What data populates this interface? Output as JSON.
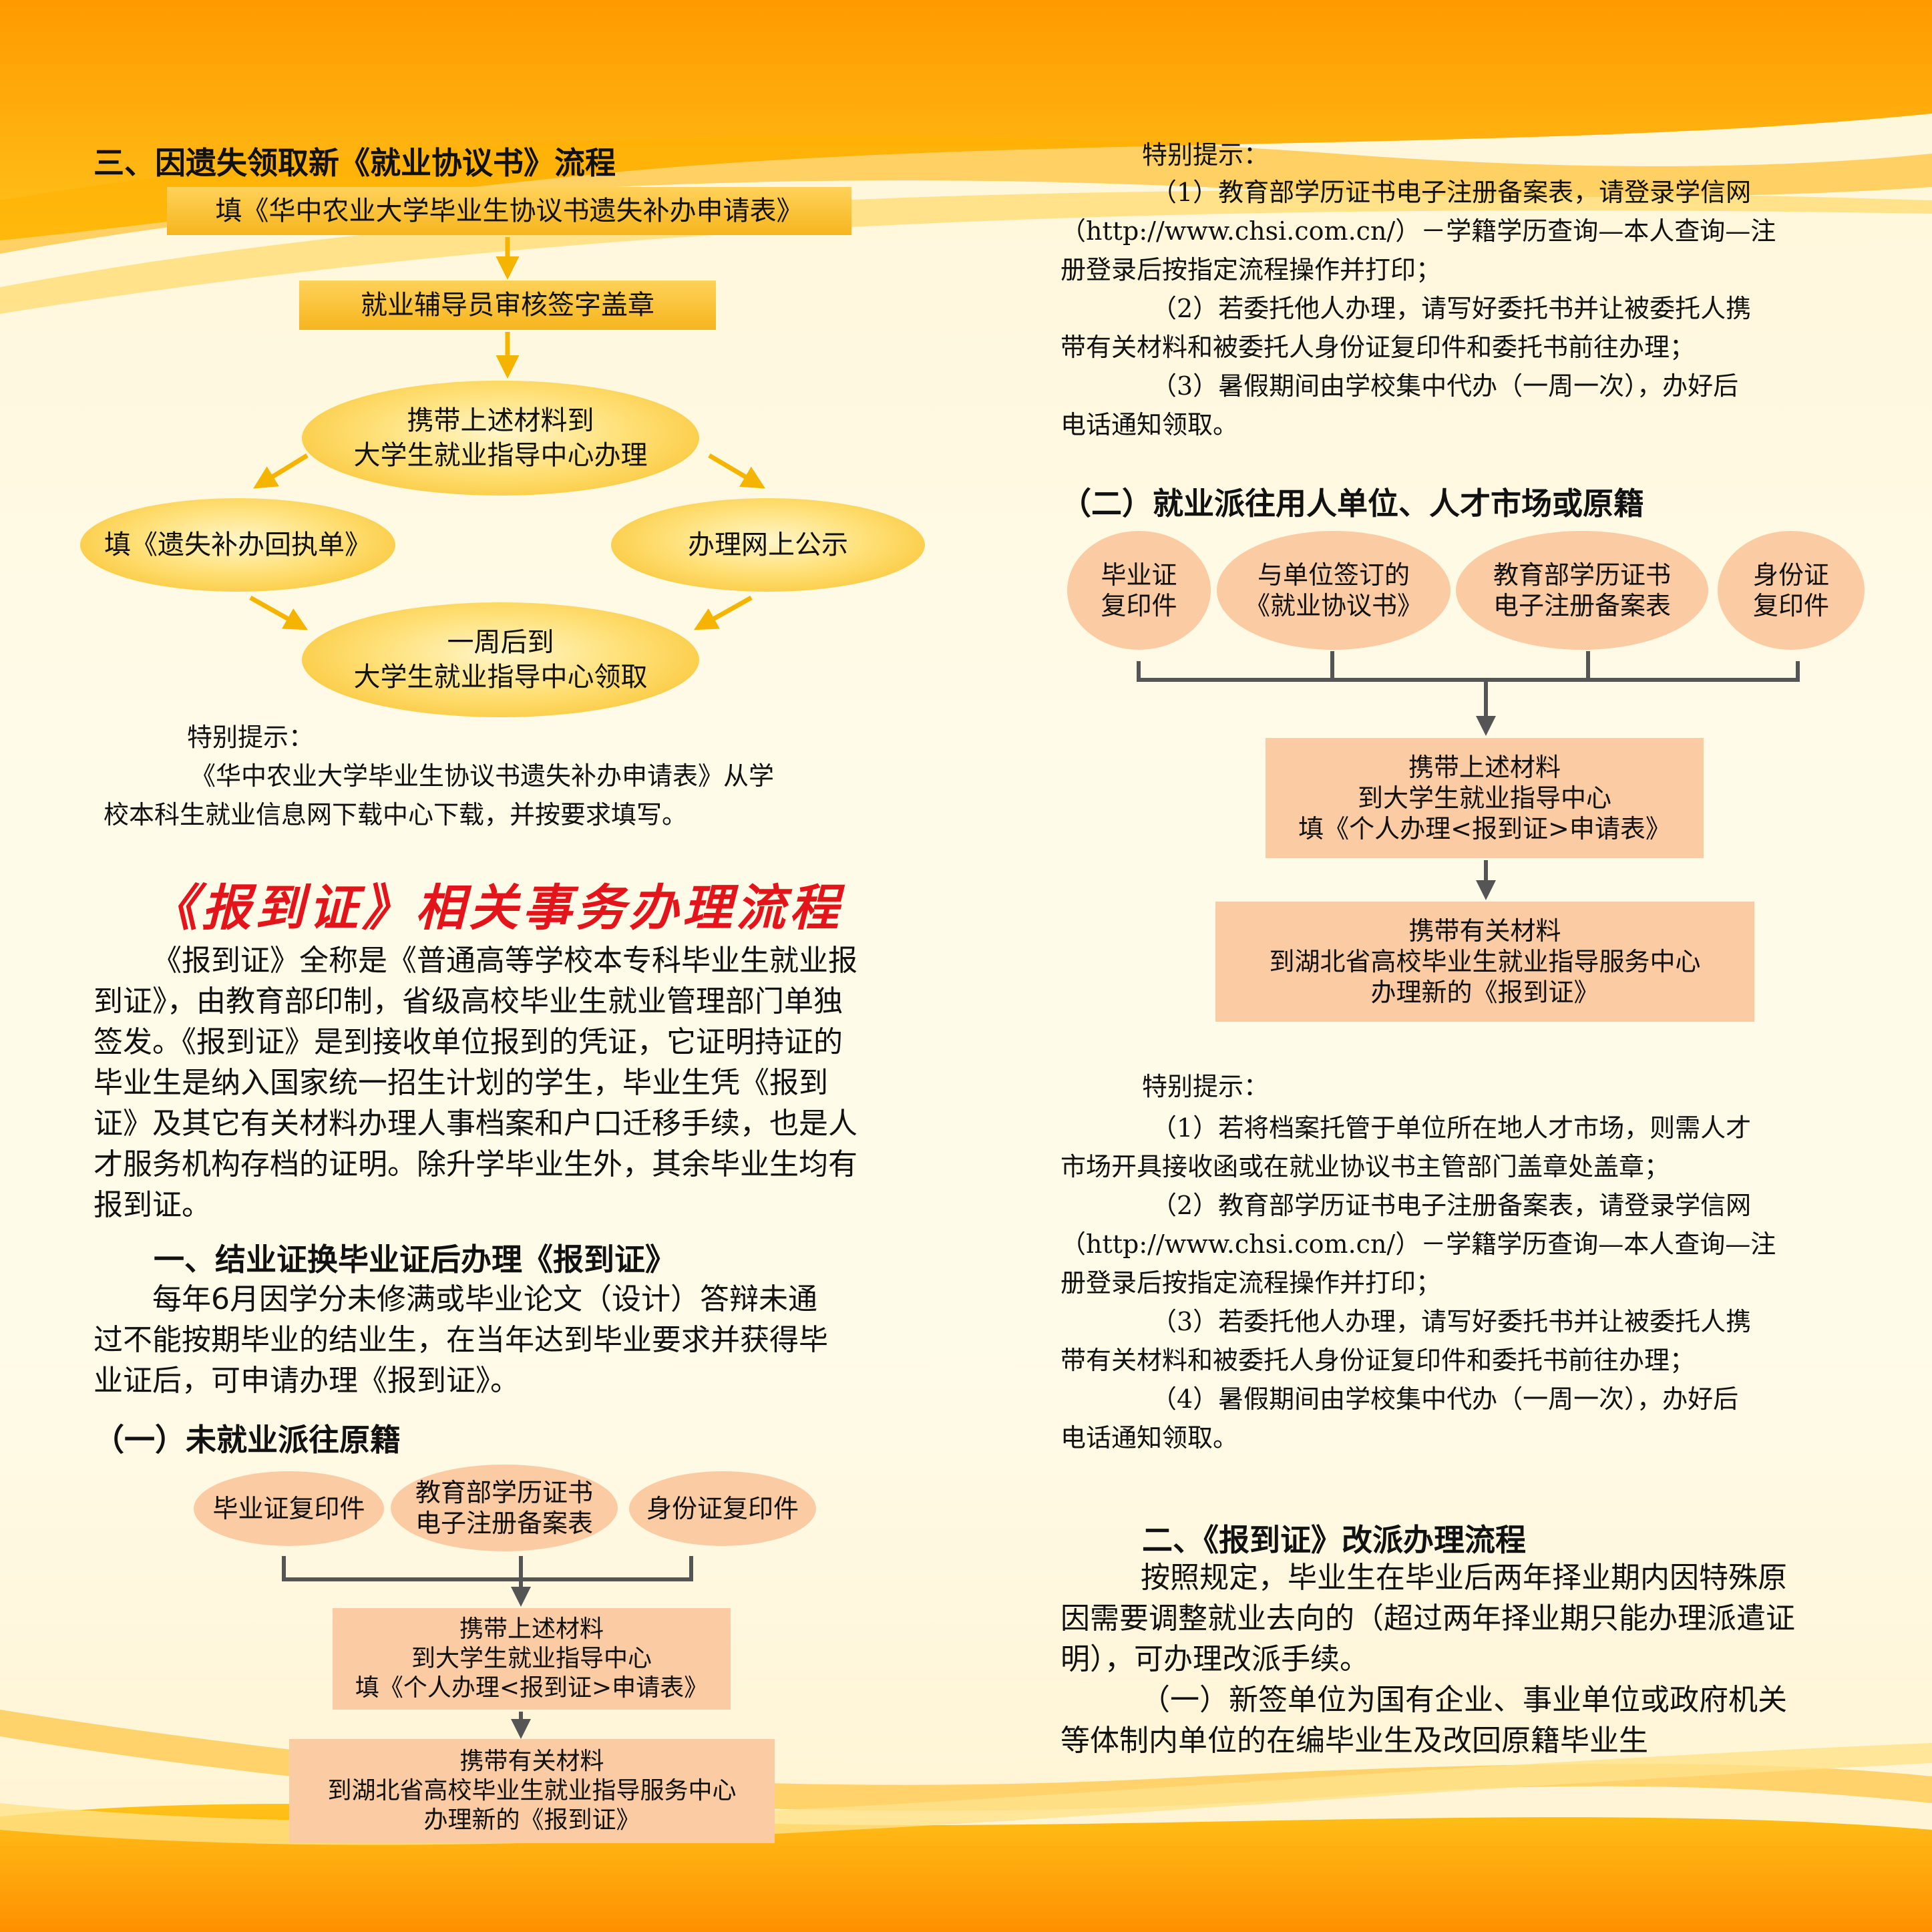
{
  "left": {
    "section3_title": "三、因遗失领取新《就业协议书》流程",
    "flow": {
      "step1": "填《华中农业大学毕业生协议书遗失补办申请表》",
      "step2": "就业辅导员审核签字盖章",
      "step3": [
        "携带上述材料到",
        "大学生就业指导中心办理"
      ],
      "left_branch": "填《遗失补办回执单》",
      "right_branch": "办理网上公示",
      "final": [
        "一周后到",
        "大学生就业指导中心领取"
      ]
    },
    "tip_title": "特别提示：",
    "tip_lines": [
      "《华中农业大学毕业生协议书遗失补办申请表》从学",
      "校本科生就业信息网下载中心下载，并按要求填写。"
    ],
    "main_title": "《报到证》相关事务办理流程",
    "intro_lines": [
      "《报到证》全称是《普通高等学校本专科毕业生就业报",
      "到证》，由教育部印制，省级高校毕业生就业管理部门单独",
      "签发。《报到证》是到接收单位报到的凭证，它证明持证的",
      "毕业生是纳入国家统一招生计划的学生，毕业生凭《报到",
      "证》及其它有关材料办理人事档案和户口迁移手续，也是人",
      "才服务机构存档的证明。除升学毕业生外，其余毕业生均有",
      "报到证。"
    ],
    "sub1_title": "一、结业证换毕业证后办理《报到证》",
    "sub1_lines": [
      "每年6月因学分未修满或毕业论文（设计）答辩未通",
      "过不能按期毕业的结业生，在当年达到毕业要求并获得毕",
      "业证后，可申请办理《报到证》。"
    ],
    "sub1a_title": "（一）未就业派往原籍",
    "docs": [
      "毕业证复印件",
      [
        "教育部学历证书",
        "电子注册备案表"
      ],
      "身份证复印件"
    ],
    "box1": [
      "携带上述材料",
      "到大学生就业指导中心",
      "填《个人办理<报到证>申请表》"
    ],
    "box2": [
      "携带有关材料",
      "到湖北省高校毕业生就业指导服务中心",
      "办理新的《报到证》"
    ]
  },
  "right": {
    "tip1_title": "特别提示：",
    "tip1_lines": [
      "（1）教育部学历证书电子注册备案表，请登录学信网",
      "（http://www.chsi.com.cn/）－学籍学历查询—本人查询—注",
      "册登录后按指定流程操作并打印；",
      "（2）若委托他人办理，请写好委托书并让被委托人携",
      "带有关材料和被委托人身份证复印件和委托书前往办理；",
      "（3）暑假期间由学校集中代办（一周一次），办好后",
      "电话通知领取。"
    ],
    "sub2_title": "（二）就业派往用人单位、人才市场或原籍",
    "docs": [
      [
        "毕业证",
        "复印件"
      ],
      [
        "与单位签订的",
        "《就业协议书》"
      ],
      [
        "教育部学历证书",
        "电子注册备案表"
      ],
      [
        "身份证",
        "复印件"
      ]
    ],
    "box1": [
      "携带上述材料",
      "到大学生就业指导中心",
      "填《个人办理<报到证>申请表》"
    ],
    "box2": [
      "携带有关材料",
      "到湖北省高校毕业生就业指导服务中心",
      "办理新的《报到证》"
    ],
    "tip2_title": "特别提示：",
    "tip2_lines": [
      "（1）若将档案托管于单位所在地人才市场，则需人才",
      "市场开具接收函或在就业协议书主管部门盖章处盖章；",
      "（2）教育部学历证书电子注册备案表，请登录学信网",
      "（http://www.chsi.com.cn/）－学籍学历查询—本人查询—注",
      "册登录后按指定流程操作并打印；",
      "（3）若委托他人办理，请写好委托书并让被委托人携",
      "带有关材料和被委托人身份证复印件和委托书前往办理；",
      "（4）暑假期间由学校集中代办（一周一次），办好后",
      "电话通知领取。"
    ],
    "sec2_title": "二、《报到证》改派办理流程",
    "sec2_lines": [
      "按照规定，毕业生在毕业后两年择业期内因特殊原",
      "因需要调整就业去向的（超过两年择业期只能办理派遣证",
      "明），可办理改派手续。",
      "（一）新签单位为国有企业、事业单位或政府机关",
      "等体制内单位的在编毕业生及改回原籍毕业生"
    ]
  },
  "colors": {
    "accent_red": "#e4141b",
    "orange": "#f7a81b",
    "peach": "#fbcca4",
    "yellow": "#f6b51e"
  }
}
